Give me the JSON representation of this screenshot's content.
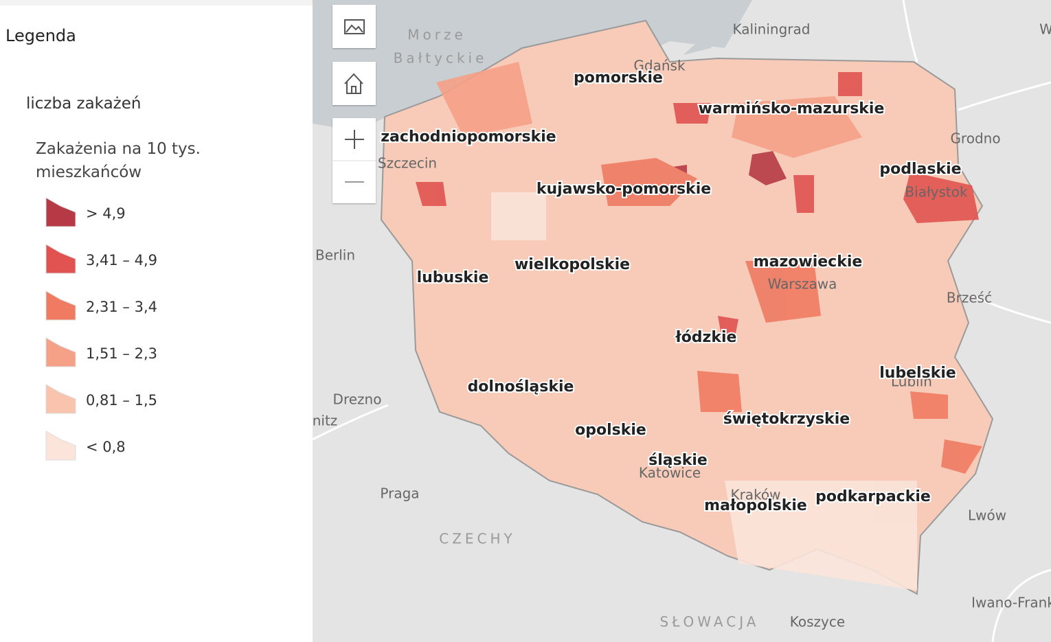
{
  "panel": {
    "title": "Legenda",
    "layer_title": "liczba zakażeń",
    "field_label": "Zakażenia na 10 tys. mieszkańców",
    "classes": [
      {
        "label": "> 4,9",
        "color": "#b63a45"
      },
      {
        "label": "3,41 – 4,9",
        "color": "#e05350"
      },
      {
        "label": "2,31 – 3,4",
        "color": "#ef7b62"
      },
      {
        "label": "1,51 – 2,3",
        "color": "#f5a187"
      },
      {
        "label": "0,81 – 1,5",
        "color": "#f8c4ad"
      },
      {
        "label": "< 0,8",
        "color": "#fbe4da"
      }
    ]
  },
  "map": {
    "regions": [
      "pomorskie",
      "warmińsko-mazurskie",
      "zachodniopomorskie",
      "podlaskie",
      "kujawsko-pomorskie",
      "wielkopolskie",
      "mazowieckie",
      "lubuskie",
      "łódzkie",
      "lubelskie",
      "dolnośląskie",
      "świętokrzyskie",
      "opolskie",
      "śląskie",
      "podkarpackie",
      "małopolskie"
    ],
    "places": [
      "Morze",
      "Bałtyckie",
      "Kaliningrad",
      "Grodno",
      "Szczecin",
      "Berlin",
      "Warszawa",
      "Białystok",
      "Brześć",
      "Drezno",
      "nitz",
      "Praga",
      "CZECHY",
      "Lwów",
      "SŁOWACJA",
      "Koszyce",
      "Iwano-Frank",
      "Gdańsk",
      "Lublin",
      "Kraków",
      "Katowice",
      "W"
    ]
  }
}
